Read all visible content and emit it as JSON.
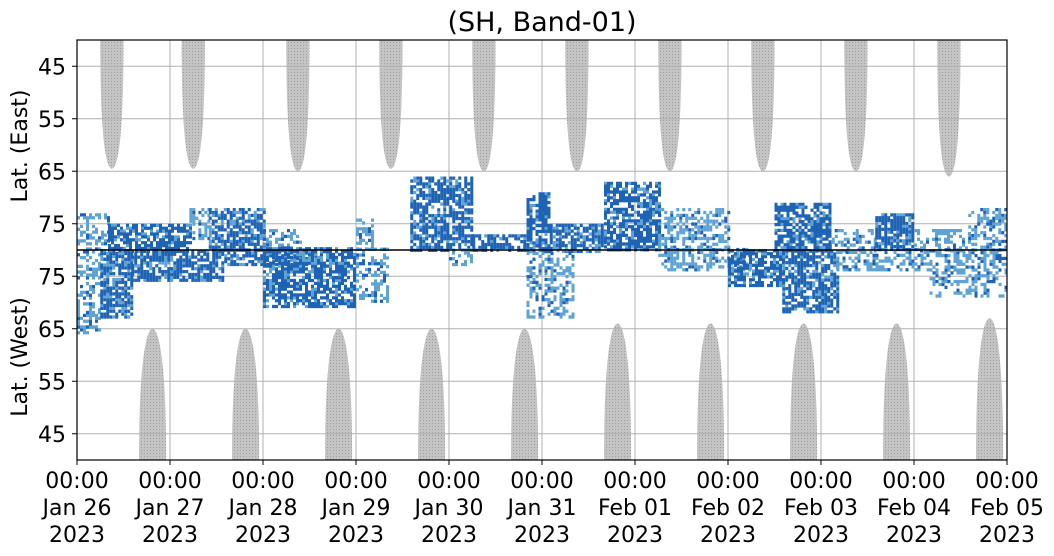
{
  "chart_data": {
    "type": "heatmap",
    "title": "(SH, Band-01)",
    "x_range": [
      "2023-01-26 00:00",
      "2023-02-05 00:00"
    ],
    "x_ticks": [
      {
        "time": "00:00",
        "date": "Jan 26",
        "year": "2023"
      },
      {
        "time": "00:00",
        "date": "Jan 27",
        "year": "2023"
      },
      {
        "time": "00:00",
        "date": "Jan 28",
        "year": "2023"
      },
      {
        "time": "00:00",
        "date": "Jan 29",
        "year": "2023"
      },
      {
        "time": "00:00",
        "date": "Jan 30",
        "year": "2023"
      },
      {
        "time": "00:00",
        "date": "Jan 31",
        "year": "2023"
      },
      {
        "time": "00:00",
        "date": "Feb 01",
        "year": "2023"
      },
      {
        "time": "00:00",
        "date": "Feb 02",
        "year": "2023"
      },
      {
        "time": "00:00",
        "date": "Feb 03",
        "year": "2023"
      },
      {
        "time": "00:00",
        "date": "Feb 04",
        "year": "2023"
      },
      {
        "time": "00:00",
        "date": "Feb 05",
        "year": "2023"
      }
    ],
    "panels": [
      {
        "name": "east",
        "ylabel": "Lat. (East)",
        "ylim": [
          40,
          80
        ],
        "inverted": true,
        "yticks": [
          45,
          55,
          65,
          75
        ],
        "ytick_labels": [
          "45",
          "55",
          "65",
          "75"
        ]
      },
      {
        "name": "west",
        "ylabel": "Lat. (West)",
        "ylim": [
          40,
          80
        ],
        "inverted": false,
        "yticks": [
          75,
          65,
          55,
          45
        ],
        "ytick_labels": [
          "75",
          "65",
          "55",
          "45"
        ]
      }
    ],
    "grid": true,
    "colors": {
      "daylight_mask": "#bdbdbd",
      "strong_echo": "#1f63b4",
      "weak_echo": "#5fa3d4",
      "grid": "#b0b0b0",
      "divider": "#000000"
    },
    "daylight_mask_east": [
      {
        "start": "2023-01-26 06:00",
        "end": "2023-01-26 12:00",
        "edge_lat": 64.5
      },
      {
        "start": "2023-01-27 03:00",
        "end": "2023-01-27 09:00",
        "edge_lat": 64.5
      },
      {
        "start": "2023-01-28 06:00",
        "end": "2023-01-28 12:00",
        "edge_lat": 65
      },
      {
        "start": "2023-01-29 06:00",
        "end": "2023-01-29 12:00",
        "edge_lat": 64.5
      },
      {
        "start": "2023-01-30 06:00",
        "end": "2023-01-30 12:00",
        "edge_lat": 65
      },
      {
        "start": "2023-01-31 06:00",
        "end": "2023-01-31 12:00",
        "edge_lat": 65
      },
      {
        "start": "2023-02-01 06:00",
        "end": "2023-02-01 12:00",
        "edge_lat": 65
      },
      {
        "start": "2023-02-02 06:00",
        "end": "2023-02-02 12:00",
        "edge_lat": 65
      },
      {
        "start": "2023-02-03 06:00",
        "end": "2023-02-03 12:00",
        "edge_lat": 65
      },
      {
        "start": "2023-02-04 06:00",
        "end": "2023-02-04 12:00",
        "edge_lat": 66
      }
    ],
    "daylight_mask_west": [
      {
        "start": "2023-01-26 16:00",
        "end": "2023-01-26 23:00",
        "edge_lat": 65
      },
      {
        "start": "2023-01-27 16:00",
        "end": "2023-01-27 23:00",
        "edge_lat": 65
      },
      {
        "start": "2023-01-28 16:00",
        "end": "2023-01-28 23:00",
        "edge_lat": 65
      },
      {
        "start": "2023-01-29 16:00",
        "end": "2023-01-29 23:00",
        "edge_lat": 65
      },
      {
        "start": "2023-01-30 16:00",
        "end": "2023-01-30 23:00",
        "edge_lat": 65
      },
      {
        "start": "2023-01-31 16:00",
        "end": "2023-01-31 23:00",
        "edge_lat": 66
      },
      {
        "start": "2023-02-01 16:00",
        "end": "2023-02-01 23:00",
        "edge_lat": 66
      },
      {
        "start": "2023-02-02 16:00",
        "end": "2023-02-02 23:00",
        "edge_lat": 66
      },
      {
        "start": "2023-02-03 16:00",
        "end": "2023-02-03 23:00",
        "edge_lat": 66
      },
      {
        "start": "2023-02-04 16:00",
        "end": "2023-02-04 23:00",
        "edge_lat": 67
      }
    ],
    "echo_regions": [
      {
        "panel": "east",
        "start": "2023-01-26 00:00",
        "end": "2023-01-26 08:00",
        "lat_range": [
          73,
          79
        ],
        "strength": "weak"
      },
      {
        "panel": "east",
        "start": "2023-01-26 08:00",
        "end": "2023-01-27 05:00",
        "lat_range": [
          75,
          80
        ],
        "strength": "strong"
      },
      {
        "panel": "east",
        "start": "2023-01-27 05:00",
        "end": "2023-01-27 10:00",
        "lat_range": [
          72,
          78
        ],
        "strength": "weak"
      },
      {
        "panel": "east",
        "start": "2023-01-27 10:00",
        "end": "2023-01-28 00:00",
        "lat_range": [
          72,
          80
        ],
        "strength": "strong"
      },
      {
        "panel": "east",
        "start": "2023-01-28 00:00",
        "end": "2023-01-28 10:00",
        "lat_range": [
          76,
          80
        ],
        "strength": "weak"
      },
      {
        "panel": "east",
        "start": "2023-01-29 00:00",
        "end": "2023-01-29 04:00",
        "lat_range": [
          74,
          80
        ],
        "strength": "weak"
      },
      {
        "panel": "east",
        "start": "2023-01-29 14:00",
        "end": "2023-01-30 06:00",
        "lat_range": [
          66,
          80
        ],
        "strength": "strong"
      },
      {
        "panel": "east",
        "start": "2023-01-30 06:00",
        "end": "2023-01-30 20:00",
        "lat_range": [
          77,
          80
        ],
        "strength": "strong"
      },
      {
        "panel": "east",
        "start": "2023-01-30 20:00",
        "end": "2023-01-31 02:00",
        "lat_range": [
          69,
          80
        ],
        "strength": "strong"
      },
      {
        "panel": "east",
        "start": "2023-01-31 02:00",
        "end": "2023-01-31 16:00",
        "lat_range": [
          75,
          80
        ],
        "strength": "strong"
      },
      {
        "panel": "east",
        "start": "2023-01-31 16:00",
        "end": "2023-02-01 06:00",
        "lat_range": [
          67,
          80
        ],
        "strength": "strong"
      },
      {
        "panel": "east",
        "start": "2023-02-01 06:00",
        "end": "2023-02-02 00:00",
        "lat_range": [
          72,
          80
        ],
        "strength": "weak"
      },
      {
        "panel": "east",
        "start": "2023-02-02 12:00",
        "end": "2023-02-03 02:00",
        "lat_range": [
          71,
          80
        ],
        "strength": "strong"
      },
      {
        "panel": "east",
        "start": "2023-02-03 02:00",
        "end": "2023-02-03 14:00",
        "lat_range": [
          76,
          80
        ],
        "strength": "weak"
      },
      {
        "panel": "east",
        "start": "2023-02-03 14:00",
        "end": "2023-02-04 00:00",
        "lat_range": [
          73,
          80
        ],
        "strength": "strong"
      },
      {
        "panel": "east",
        "start": "2023-02-04 00:00",
        "end": "2023-02-04 14:00",
        "lat_range": [
          76,
          80
        ],
        "strength": "weak"
      },
      {
        "panel": "east",
        "start": "2023-02-04 14:00",
        "end": "2023-02-05 00:00",
        "lat_range": [
          72,
          80
        ],
        "strength": "weak"
      },
      {
        "panel": "west",
        "start": "2023-01-26 00:00",
        "end": "2023-01-26 06:00",
        "lat_range": [
          64,
          80
        ],
        "strength": "weak"
      },
      {
        "panel": "west",
        "start": "2023-01-26 06:00",
        "end": "2023-01-26 14:00",
        "lat_range": [
          67,
          80
        ],
        "strength": "strong"
      },
      {
        "panel": "west",
        "start": "2023-01-26 14:00",
        "end": "2023-01-27 14:00",
        "lat_range": [
          74,
          80
        ],
        "strength": "strong"
      },
      {
        "panel": "west",
        "start": "2023-01-27 14:00",
        "end": "2023-01-28 14:00",
        "lat_range": [
          77,
          80
        ],
        "strength": "strong"
      },
      {
        "panel": "west",
        "start": "2023-01-28 00:00",
        "end": "2023-01-29 00:00",
        "lat_range": [
          69,
          80
        ],
        "strength": "strong"
      },
      {
        "panel": "west",
        "start": "2023-01-29 00:00",
        "end": "2023-01-29 08:00",
        "lat_range": [
          70,
          80
        ],
        "strength": "weak"
      },
      {
        "panel": "west",
        "start": "2023-01-30 00:00",
        "end": "2023-01-30 06:00",
        "lat_range": [
          77,
          80
        ],
        "strength": "weak"
      },
      {
        "panel": "west",
        "start": "2023-01-30 20:00",
        "end": "2023-01-31 08:00",
        "lat_range": [
          67,
          80
        ],
        "strength": "weak"
      },
      {
        "panel": "west",
        "start": "2023-02-01 06:00",
        "end": "2023-02-02 06:00",
        "lat_range": [
          76,
          80
        ],
        "strength": "weak"
      },
      {
        "panel": "west",
        "start": "2023-02-02 00:00",
        "end": "2023-02-02 14:00",
        "lat_range": [
          73,
          80
        ],
        "strength": "strong"
      },
      {
        "panel": "west",
        "start": "2023-02-02 14:00",
        "end": "2023-02-03 04:00",
        "lat_range": [
          68,
          80
        ],
        "strength": "strong"
      },
      {
        "panel": "west",
        "start": "2023-02-03 04:00",
        "end": "2023-02-04 04:00",
        "lat_range": [
          76,
          80
        ],
        "strength": "weak"
      },
      {
        "panel": "west",
        "start": "2023-02-04 04:00",
        "end": "2023-02-05 00:00",
        "lat_range": [
          71,
          80
        ],
        "strength": "weak"
      }
    ]
  }
}
